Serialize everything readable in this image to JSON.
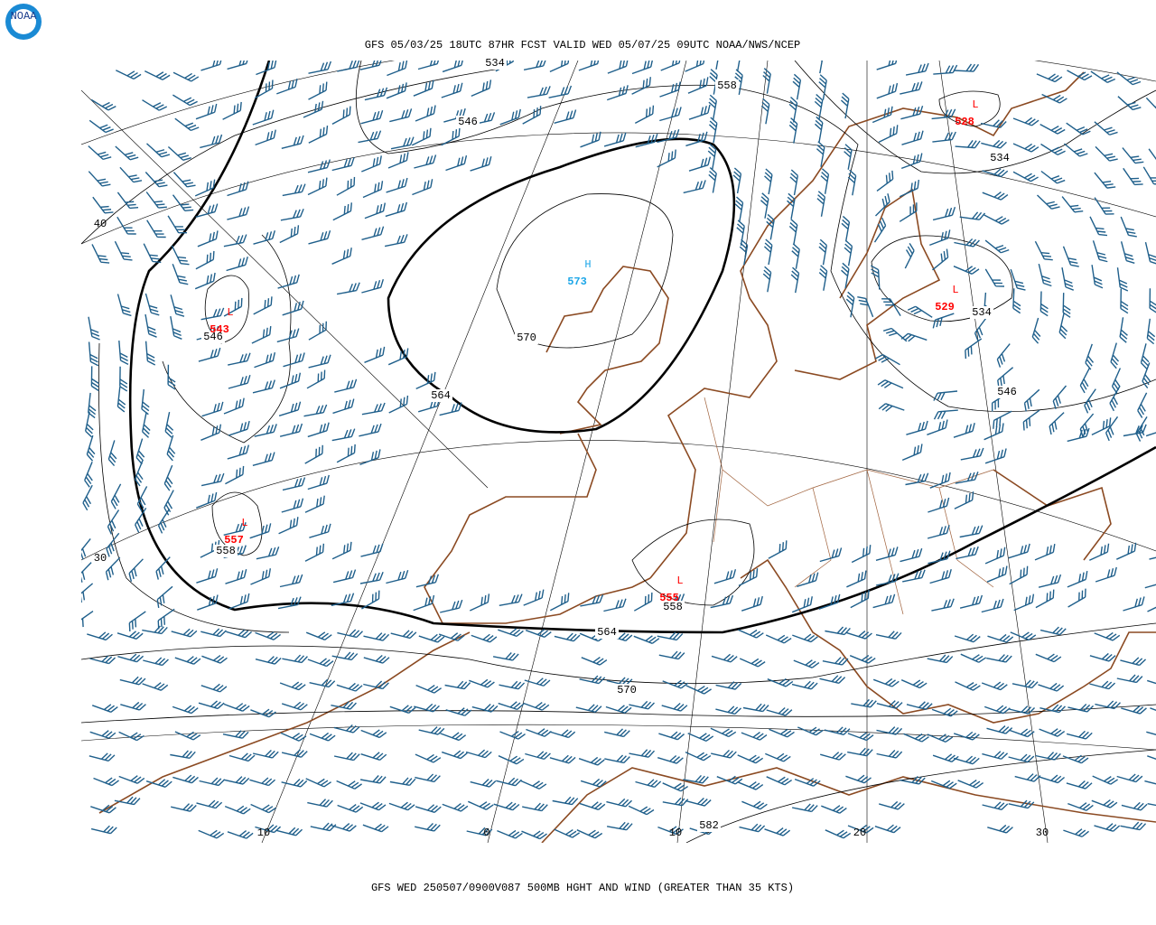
{
  "header": {
    "title": "GFS 05/03/25 18UTC 87HR FCST VALID WED 05/07/25 09UTC NOAA/NWS/NCEP",
    "logo": "NOAA"
  },
  "contour_labels": [
    "534",
    "558",
    "546",
    "534",
    "546",
    "570",
    "564",
    "534",
    "546",
    "558",
    "558",
    "564",
    "570",
    "582"
  ],
  "centers": [
    {
      "letter": "L",
      "value": "528"
    },
    {
      "letter": "L",
      "value": "529"
    },
    {
      "letter": "H",
      "value": "573"
    },
    {
      "letter": "L",
      "value": "543"
    },
    {
      "letter": "L",
      "value": "557"
    },
    {
      "letter": "L",
      "value": "555"
    }
  ],
  "grid_labels": [
    "40",
    "30",
    "10",
    "0",
    "10",
    "20",
    "30"
  ],
  "footer": {
    "caption": "GFS WED 250507/0900V087 500MB HGHT AND WIND (GREATER THAN 35 KTS)"
  }
}
